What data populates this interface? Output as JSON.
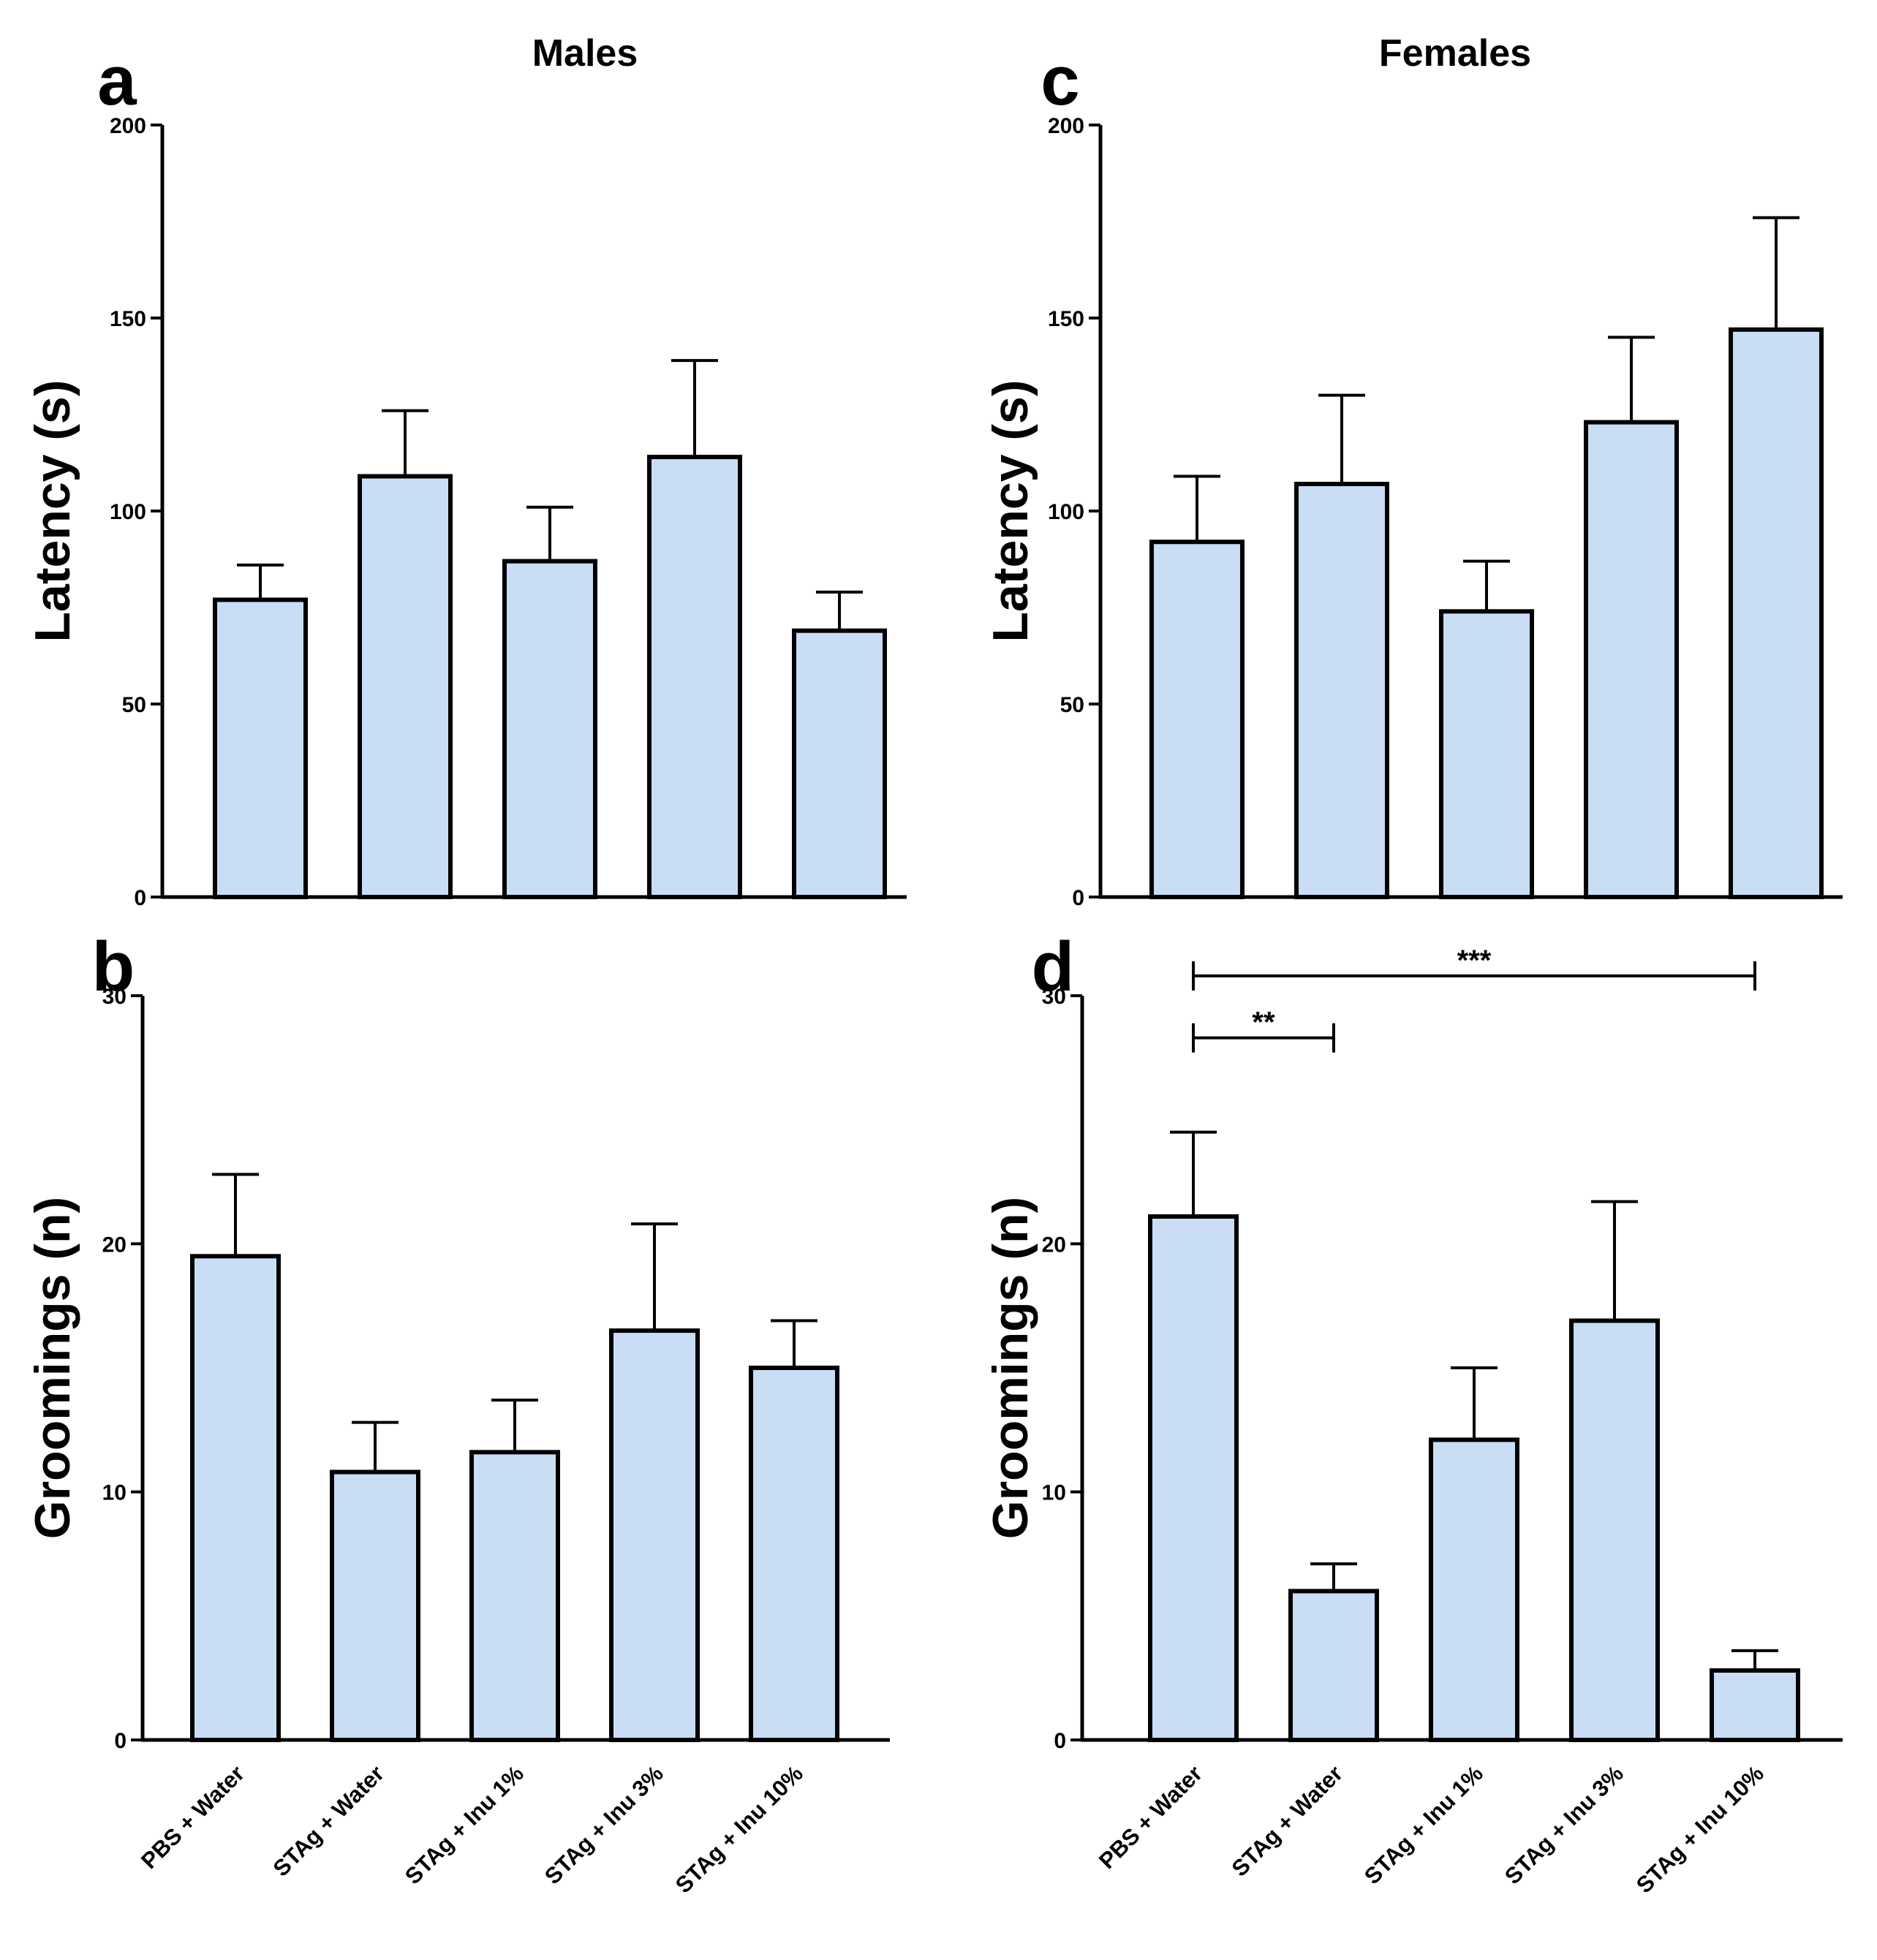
{
  "figure": {
    "column_titles": {
      "left": "Males",
      "right": "Females"
    },
    "bar_fill": "#c9ddf5",
    "bar_stroke": "#000000"
  },
  "chart_data": [
    {
      "id": "a",
      "type": "bar",
      "panel_label": "a",
      "title": "Males",
      "categories": [
        "PBS + Water",
        "STAg + Water",
        "STAg + Inu 1%",
        "STAg + Inu 3%",
        "STAg + Inu 10%"
      ],
      "values": [
        77,
        109,
        87,
        114,
        69
      ],
      "error_upper": [
        86,
        126,
        101,
        139,
        79
      ],
      "ylabel": "Latency (s)",
      "xlabel": "",
      "ylim": [
        0,
        200
      ],
      "yticks": [
        "0",
        "50",
        "100",
        "150",
        "200"
      ],
      "show_xticklabels": false,
      "significance": []
    },
    {
      "id": "b",
      "type": "bar",
      "panel_label": "b",
      "title": "",
      "categories": [
        "PBS + Water",
        "STAg + Water",
        "STAg + Inu 1%",
        "STAg + Inu 3%",
        "STAg + Inu 10%"
      ],
      "values": [
        19.5,
        10.8,
        11.6,
        16.5,
        15.0
      ],
      "error_upper": [
        22.8,
        12.8,
        13.7,
        20.8,
        16.9
      ],
      "ylabel": "Groomings (n)",
      "xlabel": "",
      "ylim": [
        0,
        30
      ],
      "yticks": [
        "0",
        "10",
        "20",
        "30"
      ],
      "show_xticklabels": true,
      "significance": []
    },
    {
      "id": "c",
      "type": "bar",
      "panel_label": "c",
      "title": "Females",
      "categories": [
        "PBS + Water",
        "STAg + Water",
        "STAg + Inu 1%",
        "STAg + Inu 3%",
        "STAg + Inu 10%"
      ],
      "values": [
        92,
        107,
        74,
        123,
        147
      ],
      "error_upper": [
        109,
        130,
        87,
        145,
        176
      ],
      "ylabel": "Latency (s)",
      "xlabel": "",
      "ylim": [
        0,
        200
      ],
      "yticks": [
        "0",
        "50",
        "100",
        "150",
        "200"
      ],
      "show_xticklabels": false,
      "significance": []
    },
    {
      "id": "d",
      "type": "bar",
      "panel_label": "d",
      "title": "",
      "categories": [
        "PBS + Water",
        "STAg + Water",
        "STAg + Inu 1%",
        "STAg + Inu 3%",
        "STAg + Inu 10%"
      ],
      "values": [
        21.1,
        6.0,
        12.1,
        16.9,
        2.8
      ],
      "error_upper": [
        24.5,
        7.1,
        15.0,
        21.7,
        3.6
      ],
      "ylabel": "Groomings (n)",
      "xlabel": "",
      "ylim": [
        0,
        30
      ],
      "yticks": [
        "0",
        "10",
        "20",
        "30"
      ],
      "show_xticklabels": true,
      "significance": [
        {
          "from": 0,
          "to": 1,
          "label": "**",
          "level": 28.3
        },
        {
          "from": 0,
          "to": 4,
          "label": "***",
          "level": 30.8
        }
      ]
    }
  ]
}
